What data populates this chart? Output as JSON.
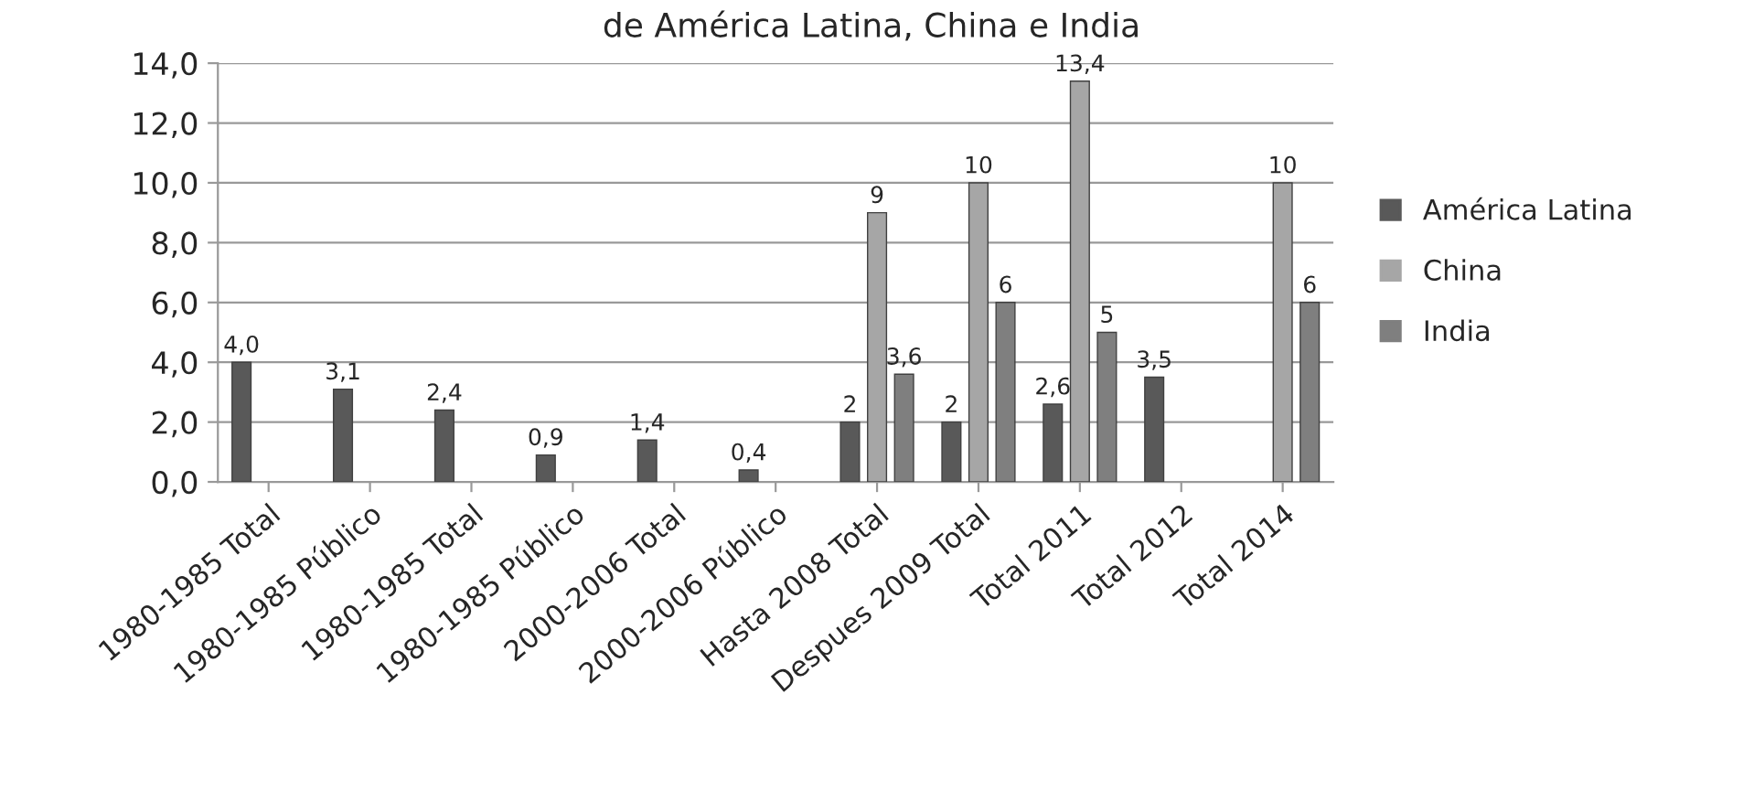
{
  "chart_data": {
    "type": "bar",
    "title": "de América Latina, China e India",
    "categories": [
      "1980-1985 Total",
      "1980-1985 Público",
      "1980-1985 Total",
      "1980-1985 Público",
      "2000-2006 Total",
      "2000-2006 Público",
      "Hasta 2008 Total",
      "Despues 2009 Total",
      "Total 2011",
      "Total 2012",
      "Total 2014"
    ],
    "series": [
      {
        "name": "América Latina",
        "color": "#595959",
        "values": [
          4.0,
          3.1,
          2.4,
          0.9,
          1.4,
          0.4,
          2,
          2,
          2.6,
          3.5,
          null
        ],
        "value_labels": [
          "4,0",
          "3,1",
          "2,4",
          "0,9",
          "1,4",
          "0,4",
          "2",
          "2",
          "2,6",
          "3,5",
          null
        ]
      },
      {
        "name": "China",
        "color": "#a6a6a6",
        "values": [
          null,
          null,
          null,
          null,
          null,
          null,
          9,
          10,
          13.4,
          null,
          10
        ],
        "value_labels": [
          null,
          null,
          null,
          null,
          null,
          null,
          "9",
          "10",
          "13,4",
          null,
          "10"
        ]
      },
      {
        "name": "India",
        "color": "#7f7f7f",
        "values": [
          null,
          null,
          null,
          null,
          null,
          null,
          3.6,
          6,
          5,
          null,
          6
        ],
        "value_labels": [
          null,
          null,
          null,
          null,
          null,
          null,
          "3,6",
          "6",
          "5",
          null,
          "6"
        ]
      }
    ],
    "ylim": [
      0,
      14
    ],
    "yticks": [
      {
        "value": 0,
        "label": "0,0"
      },
      {
        "value": 2,
        "label": "2,0"
      },
      {
        "value": 4,
        "label": "4,0"
      },
      {
        "value": 6,
        "label": "6,0"
      },
      {
        "value": 8,
        "label": "8,0"
      },
      {
        "value": 10,
        "label": "10,0"
      },
      {
        "value": 12,
        "label": "12,0"
      },
      {
        "value": 14,
        "label": "14,0"
      }
    ],
    "grid": "y",
    "legend": "right"
  }
}
